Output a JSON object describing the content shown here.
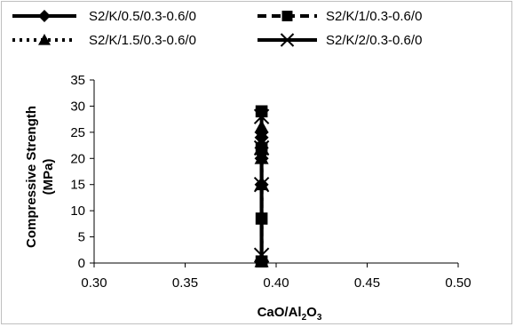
{
  "chart_data": {
    "type": "scatter",
    "xlabel": "CaO/Al2O3",
    "xlabel_main": "CaO/Al",
    "xlabel_sub1": "2",
    "xlabel_mid": "O",
    "xlabel_sub2": "3",
    "ylabel_line1": "Compressive Strength",
    "ylabel_line2": "(MPa)",
    "xlim": [
      0.3,
      0.5
    ],
    "ylim": [
      0,
      35
    ],
    "xticks": [
      "0.30",
      "0.35",
      "0.40",
      "0.45",
      "0.50"
    ],
    "yticks": [
      "0",
      "5",
      "10",
      "15",
      "20",
      "25",
      "30",
      "35"
    ],
    "grid": false,
    "legend_position": "top",
    "series": [
      {
        "name": "S2/K/0.5/0.3-0.6/0",
        "marker": "diamond",
        "line": "solid",
        "x": [
          0.392,
          0.392,
          0.392,
          0.392,
          0.392,
          0.392,
          0.392
        ],
        "y": [
          0.5,
          15,
          20,
          21,
          22,
          24,
          25
        ]
      },
      {
        "name": "S2/K/1/0.3-0.6/0",
        "marker": "square",
        "line": "dashed",
        "x": [
          0.392,
          0.392,
          0.392,
          0.392
        ],
        "y": [
          0.3,
          8.5,
          22,
          29
        ]
      },
      {
        "name": "S2/K/1.5/0.3-0.6/0",
        "marker": "triangle",
        "line": "dotted",
        "x": [
          0.392,
          0.392,
          0.392,
          0.392,
          0.392
        ],
        "y": [
          0.3,
          15,
          20,
          23,
          26
        ]
      },
      {
        "name": "S2/K/2/0.3-0.6/0",
        "marker": "x",
        "line": "solid",
        "x": [
          0.392,
          0.392,
          0.392,
          0.392
        ],
        "y": [
          1.5,
          15,
          22,
          28
        ]
      }
    ]
  },
  "colors": {
    "series": "#000000",
    "axis": "#000000",
    "frame": "#bfbfbf"
  }
}
